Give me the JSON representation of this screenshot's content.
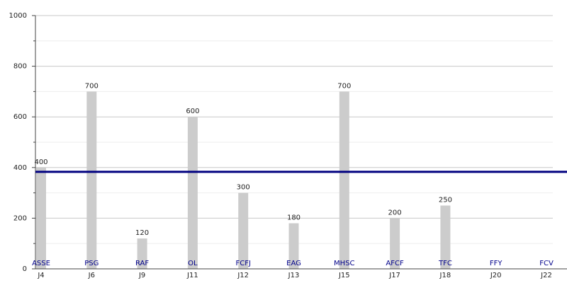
{
  "chart_data": {
    "type": "bar",
    "categories": [
      "J4",
      "J6",
      "J9",
      "J11",
      "J12",
      "J13",
      "J15",
      "J17",
      "J18",
      "J20",
      "J22"
    ],
    "labels": [
      "ASSE",
      "PSG",
      "RAF",
      "OL",
      "FCFJ",
      "EAG",
      "MHSC",
      "AFCF",
      "TFC",
      "FFY",
      "FCV"
    ],
    "values": [
      400,
      700,
      120,
      600,
      300,
      180,
      700,
      200,
      250,
      null,
      null
    ],
    "color": "#cccccc",
    "label_color": "#00008b",
    "average_line": 383,
    "average_color": "#000080",
    "ylim": [
      0,
      1000
    ],
    "yticks": [
      0,
      200,
      400,
      600,
      800,
      1000
    ],
    "minor_yticks": [
      100,
      300,
      500,
      700,
      900
    ],
    "grid": true
  }
}
